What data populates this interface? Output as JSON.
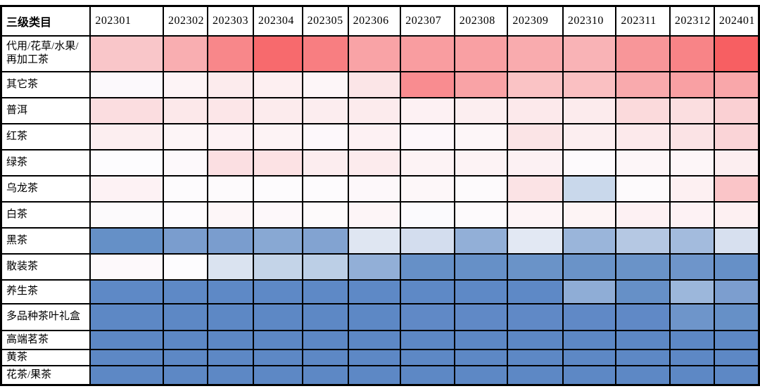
{
  "chart_data": {
    "type": "heatmap",
    "title": "",
    "corner_label": "三级类目",
    "x_labels": [
      "202301",
      "202302",
      "202303",
      "202304",
      "202305",
      "202306",
      "202307",
      "202308",
      "202309",
      "202310",
      "202311",
      "202312",
      "202401"
    ],
    "y_labels": [
      "代用/花草/水果/再加工茶",
      "其它茶",
      "普洱",
      "红茶",
      "绿茶",
      "乌龙茶",
      "白茶",
      "黑茶",
      "散装茶",
      "养生茶",
      "多品种茶叶礼盒",
      "高端茗茶",
      "黄茶",
      "花茶/果茶"
    ],
    "legend": "none",
    "grid": "on",
    "palette": {
      "positive_strong_red": "#f75f62",
      "negative_strong_blue": "#5d88c5",
      "neutral_white": "#fdfbfd",
      "grid_line": "#000000",
      "header_background": "#ffffff"
    },
    "cell_colors": [
      [
        "#f9c6c9",
        "#f9aeb1",
        "#f8878a",
        "#f76a6d",
        "#f87e81",
        "#f9a3a6",
        "#f99da0",
        "#f9a0a3",
        "#f9abae",
        "#f9b3b6",
        "#f89699",
        "#f88487",
        "#f75f62"
      ],
      [
        "#fcf9fc",
        "#fdf4f6",
        "#fcebed",
        "#fdeff1",
        "#fdf6f8",
        "#fbe5e7",
        "#f98c90",
        "#f9a3a6",
        "#fac3c5",
        "#fac0c2",
        "#f9aaad",
        "#f9a0a3",
        "#f9a7aa"
      ],
      [
        "#fbdde0",
        "#fce8ea",
        "#fce6e8",
        "#fcebed",
        "#fcedef",
        "#fcebed",
        "#fdf1f3",
        "#fceef0",
        "#fce9eb",
        "#fcebed",
        "#fbdadc",
        "#fbdee0",
        "#fad0d3"
      ],
      [
        "#fceef0",
        "#fdf5f7",
        "#fdf2f4",
        "#fdf3f5",
        "#fdf8fb",
        "#fdf1f3",
        "#fdf7fa",
        "#fdf6f8",
        "#fbe4e6",
        "#fceef0",
        "#fce9eb",
        "#fbe3e5",
        "#fad4d7"
      ],
      [
        "#fdfcfe",
        "#fdf9fb",
        "#fbdfe2",
        "#fce2e4",
        "#fcedef",
        "#fcebed",
        "#fdf3f5",
        "#fdf3f5",
        "#fcf1f3",
        "#fdfafc",
        "#fdf6f8",
        "#fdf6f8",
        "#fceef0"
      ],
      [
        "#fdf2f4",
        "#fdfbfd",
        "#fdfafc",
        "#fdfbfd",
        "#fdfbfd",
        "#fdf8fa",
        "#fdf7f9",
        "#fdfafc",
        "#fbe3e5",
        "#c9d8eb",
        "#fdfafc",
        "#fdf0f2",
        "#fac5c8"
      ],
      [
        "#fcfafc",
        "#fdfbfd",
        "#fdf6f8",
        "#fdf8fa",
        "#fdfafb",
        "#fdf5f7",
        "#fbfafd",
        "#fdfafc",
        "#fdf4f6",
        "#fdf4f5",
        "#fdf1f3",
        "#fdf2f4",
        "#fdf0f2"
      ],
      [
        "#6590c7",
        "#7a9dce",
        "#7a9dce",
        "#88a8d3",
        "#82a3d1",
        "#dfe6f2",
        "#d3ddee",
        "#92afd7",
        "#e2e8f3",
        "#9ab5da",
        "#b5c8e3",
        "#a3bbdd",
        "#d7e0ef"
      ],
      [
        "#fdf9fb",
        "#fdfcfe",
        "#dae3f0",
        "#c4d4e8",
        "#bccfe6",
        "#92afd7",
        "#6690c7",
        "#6690c7",
        "#6a93c8",
        "#6a93c8",
        "#6a93c8",
        "#6e95ca",
        "#6690c7"
      ],
      [
        "#5e89c6",
        "#5e89c6",
        "#5e89c6",
        "#5e89c6",
        "#5e89c6",
        "#5e89c6",
        "#5e89c6",
        "#5e89c6",
        "#5e89c6",
        "#8fadd6",
        "#6690c7",
        "#9cb7db",
        "#7c9ecf"
      ],
      [
        "#5d88c5",
        "#5d88c5",
        "#5d88c5",
        "#5d88c5",
        "#5d88c5",
        "#5d88c5",
        "#6089c6",
        "#6089c6",
        "#6089c6",
        "#6089c6",
        "#6089c6",
        "#6e95ca",
        "#6690c7"
      ],
      [
        "#5d88c5",
        "#5d88c5",
        "#5d88c5",
        "#5d88c5",
        "#5d88c5",
        "#5d88c5",
        "#5d88c5",
        "#5d88c5",
        "#5d88c5",
        "#5d88c5",
        "#5d88c5",
        "#5d88c5",
        "#5d88c5"
      ],
      [
        "#5d88c5",
        "#5d88c5",
        "#5d88c5",
        "#5d88c5",
        "#5d88c5",
        "#5d88c5",
        "#5d88c5",
        "#5d88c5",
        "#5d88c5",
        "#5d88c5",
        "#5d88c5",
        "#5d88c5",
        "#5d88c5"
      ],
      [
        "#5d88c5",
        "#5d88c5",
        "#5d88c5",
        "#5d88c5",
        "#5d88c5",
        "#5d88c5",
        "#5d88c5",
        "#5d88c5",
        "#5d88c5",
        "#5d88c5",
        "#5d88c5",
        "#5d88c5",
        "#5d88c5"
      ]
    ]
  }
}
